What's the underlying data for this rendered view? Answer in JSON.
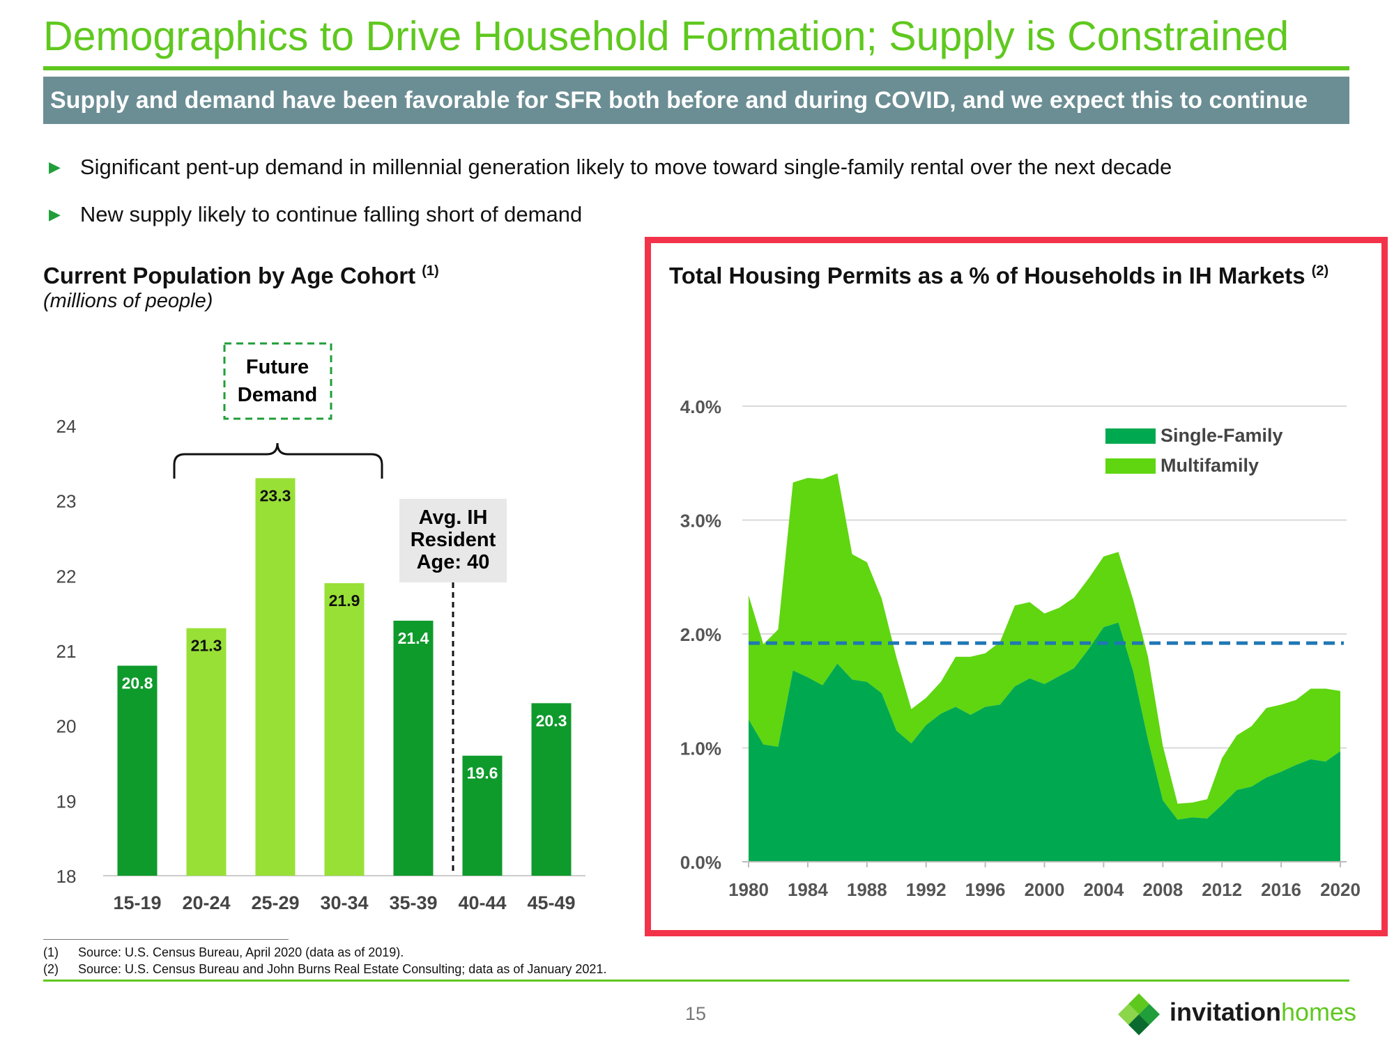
{
  "header": {
    "title": "Demographics to Drive Household Formation; Supply is Constrained",
    "subtitle": "Supply and demand have been favorable for SFR both before and during COVID, and we expect this to continue"
  },
  "bullets": [
    "Significant pent-up demand in millennial generation likely to move toward single-family rental over the next decade",
    "New supply likely to continue falling short of demand"
  ],
  "left_chart": {
    "title": "Current Population by Age Cohort",
    "title_note": "(1)",
    "subtitle": "(millions of people)",
    "annotation_future": [
      "Future",
      "Demand"
    ],
    "annotation_avg": [
      "Avg. IH",
      "Resident",
      "Age: 40"
    ]
  },
  "right_chart": {
    "title": "Total Housing Permits as a % of Households in IH Markets",
    "title_note": "(2)"
  },
  "chart_data": [
    {
      "type": "bar",
      "title": "Current Population by Age Cohort",
      "subtitle": "(millions of people)",
      "categories": [
        "15-19",
        "20-24",
        "25-29",
        "30-34",
        "35-39",
        "40-44",
        "45-49"
      ],
      "values": [
        20.8,
        21.3,
        23.3,
        21.9,
        21.4,
        19.6,
        20.3
      ],
      "value_labels": [
        "20.8",
        "21.3",
        "23.3",
        "21.9",
        "21.4",
        "19.6",
        "20.3"
      ],
      "ylim": [
        18,
        24
      ],
      "yticks": [
        "18",
        "19",
        "20",
        "21",
        "22",
        "23",
        "24"
      ],
      "grid": false,
      "bar_colors": [
        "#0f9a2c",
        "#98e036",
        "#98e036",
        "#98e036",
        "#0f9a2c",
        "#0f9a2c",
        "#0f9a2c"
      ]
    },
    {
      "type": "area",
      "title": "Total Housing Permits as a % of Households in IH Markets",
      "stacked": true,
      "x": [
        1980,
        1981,
        1982,
        1983,
        1984,
        1985,
        1986,
        1987,
        1988,
        1989,
        1990,
        1991,
        1992,
        1993,
        1994,
        1995,
        1996,
        1997,
        1998,
        1999,
        2000,
        2001,
        2002,
        2003,
        2004,
        2005,
        2006,
        2007,
        2008,
        2009,
        2010,
        2011,
        2012,
        2013,
        2014,
        2015,
        2016,
        2017,
        2018,
        2019,
        2020
      ],
      "series": [
        {
          "name": "Single-Family",
          "color": "#00a94f",
          "values": [
            1.25,
            1.03,
            1.01,
            1.68,
            1.62,
            1.55,
            1.74,
            1.6,
            1.58,
            1.48,
            1.15,
            1.04,
            1.2,
            1.3,
            1.36,
            1.29,
            1.36,
            1.38,
            1.54,
            1.61,
            1.56,
            1.63,
            1.7,
            1.87,
            2.06,
            2.1,
            1.67,
            1.07,
            0.54,
            0.37,
            0.39,
            0.38,
            0.5,
            0.63,
            0.66,
            0.74,
            0.79,
            0.85,
            0.9,
            0.88,
            0.97
          ]
        },
        {
          "name": "Multifamily",
          "color": "#5fd610",
          "values": [
            1.09,
            0.88,
            1.03,
            1.65,
            1.75,
            1.81,
            1.67,
            1.1,
            1.05,
            0.83,
            0.64,
            0.3,
            0.24,
            0.28,
            0.44,
            0.51,
            0.47,
            0.55,
            0.71,
            0.67,
            0.62,
            0.6,
            0.62,
            0.62,
            0.62,
            0.62,
            0.63,
            0.73,
            0.48,
            0.14,
            0.13,
            0.17,
            0.41,
            0.48,
            0.53,
            0.61,
            0.59,
            0.57,
            0.62,
            0.64,
            0.53
          ]
        }
      ],
      "reference_line": {
        "value": 1.92,
        "style": "dashed",
        "color": "#1f77b4"
      },
      "ylim": [
        0,
        4.0
      ],
      "yticks": [
        "0.0%",
        "1.0%",
        "2.0%",
        "3.0%",
        "4.0%"
      ],
      "xticks": [
        "1980",
        "1984",
        "1988",
        "1992",
        "1996",
        "2000",
        "2004",
        "2008",
        "2012",
        "2016",
        "2020"
      ],
      "grid": true,
      "legend": "top-right"
    }
  ],
  "footnotes": [
    {
      "num": "(1)",
      "text": "Source:  U.S. Census Bureau, April 2020 (data as of 2019)."
    },
    {
      "num": "(2)",
      "text": "Source: U.S. Census Bureau and John Burns Real Estate Consulting; data as of January 2021."
    }
  ],
  "page_number": "15",
  "logo": {
    "part1": "invitation",
    "part2": "homes",
    "colors": [
      "#5fc81e",
      "#1f9e3a",
      "#0b6b2e"
    ]
  }
}
